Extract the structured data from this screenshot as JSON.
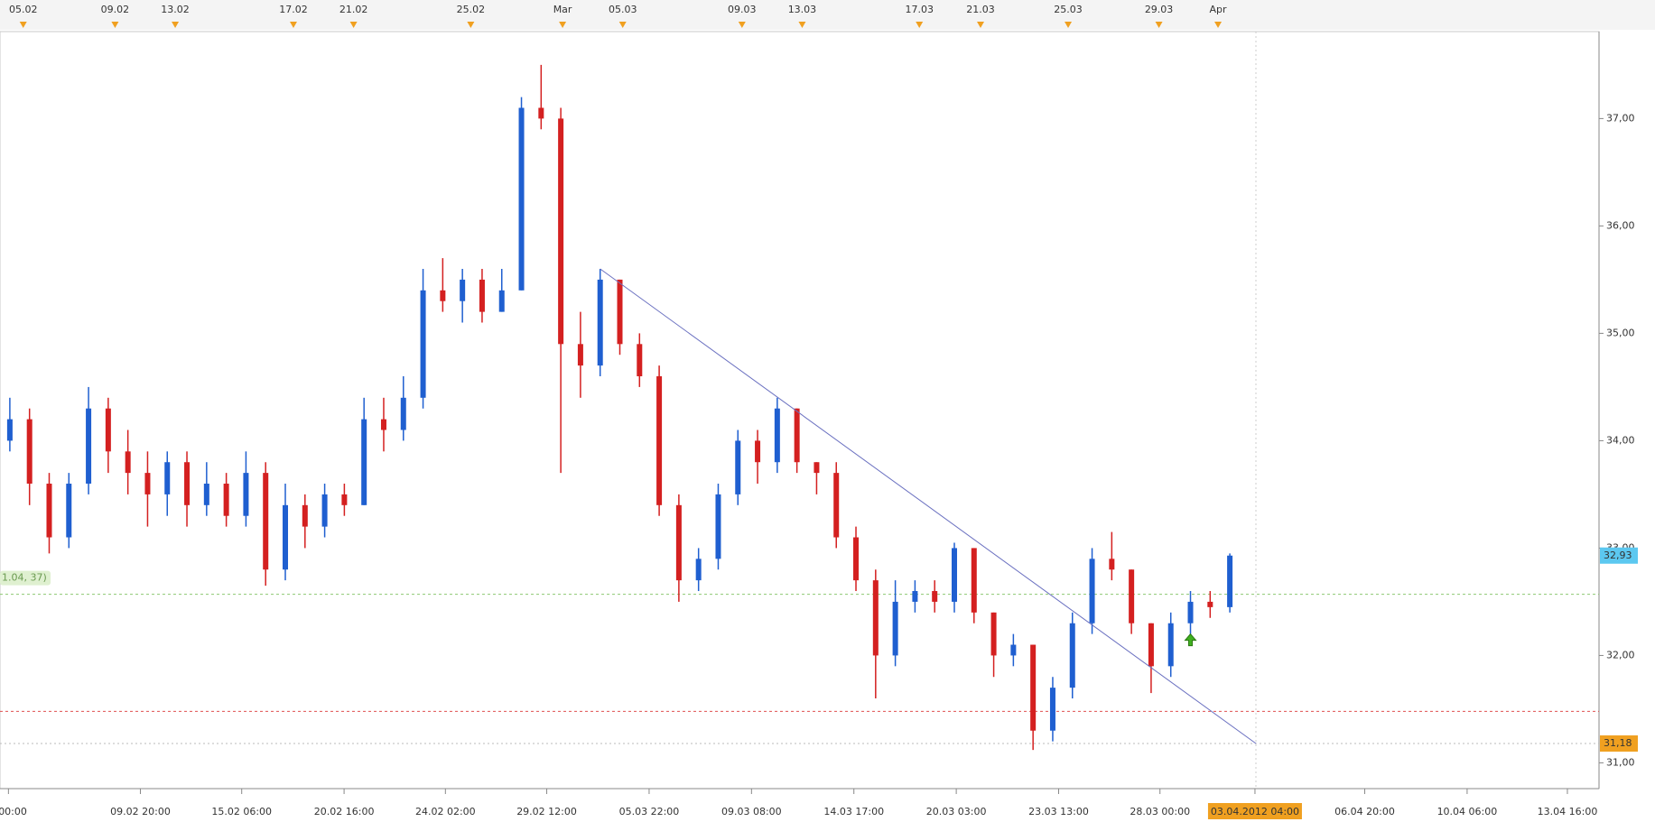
{
  "chart_data": {
    "type": "candlestick",
    "up_color": "#1f5fd0",
    "down_color": "#d42020",
    "open": [
      34.0,
      34.2,
      33.6,
      33.1,
      33.6,
      34.3,
      33.9,
      33.7,
      33.5,
      33.8,
      33.4,
      33.6,
      33.3,
      33.7,
      32.8,
      33.4,
      33.2,
      33.5,
      33.4,
      34.2,
      34.1,
      34.4,
      35.4,
      35.3,
      35.5,
      35.2,
      35.4,
      37.1,
      37.0,
      34.9,
      34.7,
      35.5,
      34.9,
      34.6,
      33.4,
      32.7,
      32.9,
      33.5,
      34.0,
      33.8,
      34.3,
      33.8,
      33.7,
      33.1,
      32.7,
      32.0,
      32.5,
      32.6,
      32.5,
      33.0,
      32.4,
      32.0,
      32.1,
      31.3,
      31.7,
      32.3,
      32.9,
      32.8,
      32.3,
      31.9,
      32.3,
      32.5,
      32.45
    ],
    "high": [
      34.4,
      34.3,
      33.7,
      33.7,
      34.5,
      34.4,
      34.1,
      33.9,
      33.9,
      33.9,
      33.8,
      33.7,
      33.9,
      33.8,
      33.6,
      33.5,
      33.6,
      33.6,
      34.4,
      34.4,
      34.6,
      35.6,
      35.7,
      35.6,
      35.6,
      35.6,
      37.2,
      37.5,
      37.1,
      35.2,
      35.6,
      35.5,
      35.0,
      34.7,
      33.5,
      33.0,
      33.6,
      34.1,
      34.1,
      34.4,
      34.3,
      33.8,
      33.8,
      33.2,
      32.8,
      32.7,
      32.7,
      32.7,
      33.05,
      33.0,
      32.4,
      32.2,
      32.1,
      31.8,
      32.4,
      33.0,
      33.15,
      32.8,
      32.3,
      32.4,
      32.6,
      32.6,
      32.95
    ],
    "low": [
      33.9,
      33.4,
      32.95,
      33.0,
      33.5,
      33.7,
      33.5,
      33.2,
      33.3,
      33.2,
      33.3,
      33.2,
      33.2,
      32.65,
      32.7,
      33.0,
      33.1,
      33.3,
      33.4,
      33.9,
      34.0,
      34.3,
      35.2,
      35.1,
      35.1,
      35.2,
      35.4,
      36.9,
      33.7,
      34.4,
      34.6,
      34.8,
      34.5,
      33.3,
      32.5,
      32.6,
      32.8,
      33.4,
      33.6,
      33.7,
      33.7,
      33.5,
      33.0,
      32.6,
      31.6,
      31.9,
      32.4,
      32.4,
      32.4,
      32.3,
      31.8,
      31.9,
      31.12,
      31.2,
      31.6,
      32.2,
      32.7,
      32.2,
      31.65,
      31.8,
      32.2,
      32.35,
      32.4
    ],
    "close": [
      34.2,
      33.6,
      33.1,
      33.6,
      34.3,
      33.9,
      33.7,
      33.5,
      33.8,
      33.4,
      33.6,
      33.3,
      33.7,
      32.8,
      33.4,
      33.2,
      33.5,
      33.4,
      34.2,
      34.1,
      34.4,
      35.4,
      35.3,
      35.5,
      35.2,
      35.4,
      37.1,
      37.0,
      34.9,
      34.7,
      35.5,
      34.9,
      34.6,
      33.4,
      32.7,
      32.9,
      33.5,
      34.0,
      33.8,
      34.3,
      33.8,
      33.7,
      33.1,
      32.7,
      32.0,
      32.5,
      32.6,
      32.5,
      33.0,
      32.4,
      32.0,
      32.1,
      31.3,
      31.7,
      32.3,
      32.9,
      32.8,
      32.3,
      31.9,
      32.3,
      32.5,
      32.45,
      32.93
    ],
    "ylim": [
      30.76,
      37.81
    ],
    "yticks": [
      {
        "value": 31,
        "label": "31,00"
      },
      {
        "value": 32,
        "label": "32,00"
      },
      {
        "value": 33,
        "label": "33,00"
      },
      {
        "value": 34,
        "label": "34,00"
      },
      {
        "value": 35,
        "label": "35,00"
      },
      {
        "value": 36,
        "label": "36,00"
      },
      {
        "value": 37,
        "label": "37,00"
      }
    ],
    "top_axis_labels": [
      "05.02",
      "09.02",
      "13.02",
      "17.02",
      "21.02",
      "25.02",
      "Mar",
      "05.03",
      "09.03",
      "13.03",
      "17.03",
      "21.03",
      "25.03",
      "29.03",
      "Apr"
    ],
    "bottom_axis_labels": [
      "00:00",
      "09.02 20:00",
      "15.02 06:00",
      "20.02 16:00",
      "24.02 02:00",
      "29.02 12:00",
      "05.03 22:00",
      "09.03 08:00",
      "14.03 17:00",
      "20.03 03:00",
      "23.03 13:00",
      "28.03 00:00",
      "03.04.2012 04:00",
      "06.04 20:00",
      "10.04 06:00",
      "13.04 16:00"
    ],
    "hlines": [
      {
        "value": 32.57,
        "color": "#8cc870"
      },
      {
        "value": 31.48,
        "color": "#e05050"
      },
      {
        "value": 31.18,
        "color": "#bbbbbb"
      }
    ],
    "trendline": {
      "start": 35.6,
      "end": 31.18,
      "color": "#6a70c0"
    },
    "price_tags": [
      {
        "value": 32.93,
        "label": "32,93",
        "color": "#5cc8f0"
      },
      {
        "value": 31.18,
        "label": "31,18",
        "color": "#f0a020"
      }
    ],
    "annotation": "1.04, 37)"
  }
}
